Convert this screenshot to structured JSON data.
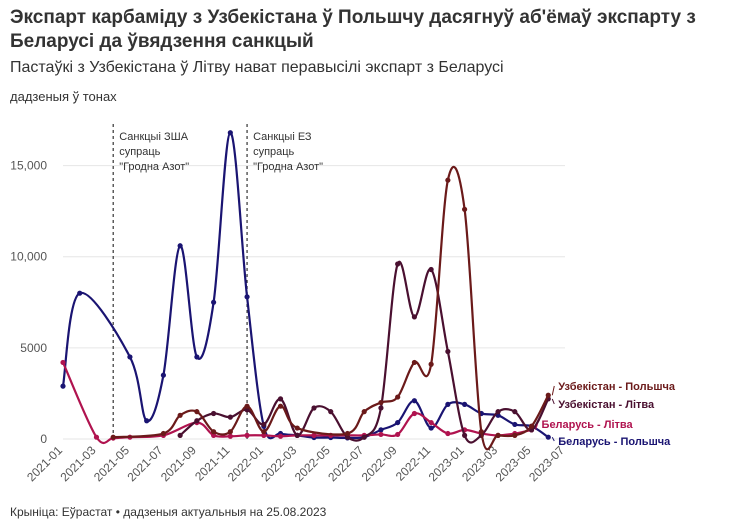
{
  "title": "Экспарт карбаміду з Узбекістана ў Польшчу дасягнуў аб'ёмаў экспарту з Беларусі да ўвядзення санкцый",
  "subtitle": "Пастаўкі з Узбекістана ў Літву нават перавысілі экспарт з Беларусі",
  "unit_note": "дадзеныя ў тонах",
  "footer": "Крыніца: Еўрастат • дадзеныя актуальныя на 25.08.2023",
  "colors": {
    "uz_pl": "#6b1a1a",
    "uz_lt": "#4a1030",
    "by_lt": "#b0134f",
    "by_pl": "#1a1472",
    "grid": "#e6e6e6",
    "annotation_line": "#333333"
  },
  "chart_data": {
    "type": "line",
    "title": "Экспарт карбаміду з Узбекістана ў Польшчу дасягнуў аб'ёмаў экспарту з Беларусі да ўвядзення санкцый",
    "ylabel": "дадзеныя ў тонах",
    "ylim": [
      0,
      17500
    ],
    "yticks": [
      0,
      5000,
      10000,
      15000
    ],
    "ytick_labels": [
      "0",
      "5000",
      "10,000",
      "15,000"
    ],
    "grid": "horizontal",
    "x_ticks": [
      "2021-01",
      "2021-03",
      "2021-05",
      "2021-07",
      "2021-09",
      "2021-11",
      "2022-01",
      "2022-03",
      "2022-05",
      "2022-07",
      "2022-09",
      "2022-11",
      "2023-01",
      "2023-03",
      "2023-05",
      "2023-07"
    ],
    "annotations": [
      {
        "x": "2021-04",
        "lines": [
          "Санкцыі ЗША",
          "супраць",
          "\"Гродна Азот\""
        ]
      },
      {
        "x": "2021-12",
        "lines": [
          "Санкцыі ЕЗ",
          "супраць",
          "\"Гродна Азот\""
        ]
      }
    ],
    "series": [
      {
        "name": "Беларусь - Польшча",
        "color": "#1a1472",
        "points": [
          [
            "2021-01",
            2900
          ],
          [
            "2021-02",
            8000
          ],
          [
            "2021-05",
            4500
          ],
          [
            "2021-06",
            1000
          ],
          [
            "2021-07",
            3500
          ],
          [
            "2021-08",
            10600
          ],
          [
            "2021-09",
            4500
          ],
          [
            "2021-10",
            7500
          ],
          [
            "2021-11",
            16800
          ],
          [
            "2021-12",
            7800
          ],
          [
            "2022-01",
            700
          ],
          [
            "2022-02",
            300
          ],
          [
            "2022-03",
            200
          ],
          [
            "2022-04",
            80
          ],
          [
            "2022-05",
            80
          ],
          [
            "2022-06",
            60
          ],
          [
            "2022-07",
            100
          ],
          [
            "2022-08",
            500
          ],
          [
            "2022-09",
            900
          ],
          [
            "2022-10",
            2100
          ],
          [
            "2022-11",
            600
          ],
          [
            "2022-12",
            1900
          ],
          [
            "2023-01",
            1900
          ],
          [
            "2023-02",
            1400
          ],
          [
            "2023-03",
            1300
          ],
          [
            "2023-04",
            800
          ],
          [
            "2023-05",
            700
          ],
          [
            "2023-06",
            100
          ]
        ]
      },
      {
        "name": "Беларусь - Літва",
        "color": "#b0134f",
        "points": [
          [
            "2021-01",
            4200
          ],
          [
            "2021-03",
            100
          ],
          [
            "2021-04",
            50
          ],
          [
            "2021-05",
            100
          ],
          [
            "2021-07",
            200
          ],
          [
            "2021-09",
            900
          ],
          [
            "2021-10",
            200
          ],
          [
            "2021-11",
            150
          ],
          [
            "2021-12",
            200
          ],
          [
            "2022-01",
            200
          ],
          [
            "2022-02",
            150
          ],
          [
            "2022-03",
            200
          ],
          [
            "2022-04",
            200
          ],
          [
            "2022-05",
            200
          ],
          [
            "2022-06",
            200
          ],
          [
            "2022-07",
            200
          ],
          [
            "2022-08",
            250
          ],
          [
            "2022-09",
            250
          ],
          [
            "2022-10",
            1400
          ],
          [
            "2022-11",
            900
          ],
          [
            "2022-12",
            300
          ],
          [
            "2023-01",
            500
          ],
          [
            "2023-02",
            300
          ],
          [
            "2023-03",
            200
          ],
          [
            "2023-04",
            300
          ],
          [
            "2023-05",
            500
          ]
        ]
      },
      {
        "name": "Узбекістан - Літва",
        "color": "#4a1030",
        "points": [
          [
            "2021-08",
            200
          ],
          [
            "2021-09",
            1000
          ],
          [
            "2021-10",
            1400
          ],
          [
            "2021-11",
            1200
          ],
          [
            "2021-12",
            1600
          ],
          [
            "2022-01",
            800
          ],
          [
            "2022-02",
            2200
          ],
          [
            "2022-03",
            200
          ],
          [
            "2022-04",
            1700
          ],
          [
            "2022-05",
            1500
          ],
          [
            "2022-06",
            100
          ],
          [
            "2022-07",
            100
          ],
          [
            "2022-08",
            1700
          ],
          [
            "2022-09",
            9600
          ],
          [
            "2022-10",
            6700
          ],
          [
            "2022-11",
            9300
          ],
          [
            "2022-12",
            4800
          ],
          [
            "2023-01",
            200
          ],
          [
            "2023-02",
            200
          ],
          [
            "2023-03",
            1500
          ],
          [
            "2023-04",
            1500
          ],
          [
            "2023-05",
            500
          ],
          [
            "2023-06",
            2200
          ]
        ]
      },
      {
        "name": "Узбекістан - Польшча",
        "color": "#6b1a1a",
        "points": [
          [
            "2021-04",
            100
          ],
          [
            "2021-07",
            300
          ],
          [
            "2021-08",
            1300
          ],
          [
            "2021-09",
            1500
          ],
          [
            "2021-10",
            400
          ],
          [
            "2021-11",
            400
          ],
          [
            "2021-12",
            1800
          ],
          [
            "2022-01",
            400
          ],
          [
            "2022-02",
            1800
          ],
          [
            "2022-03",
            600
          ],
          [
            "2022-06",
            300
          ],
          [
            "2022-07",
            1500
          ],
          [
            "2022-08",
            2000
          ],
          [
            "2022-09",
            2300
          ],
          [
            "2022-10",
            4200
          ],
          [
            "2022-11",
            4100
          ],
          [
            "2022-12",
            14200
          ],
          [
            "2023-01",
            12600
          ],
          [
            "2023-02",
            400
          ],
          [
            "2023-03",
            200
          ],
          [
            "2023-04",
            200
          ],
          [
            "2023-05",
            700
          ],
          [
            "2023-06",
            2400
          ]
        ]
      }
    ]
  }
}
